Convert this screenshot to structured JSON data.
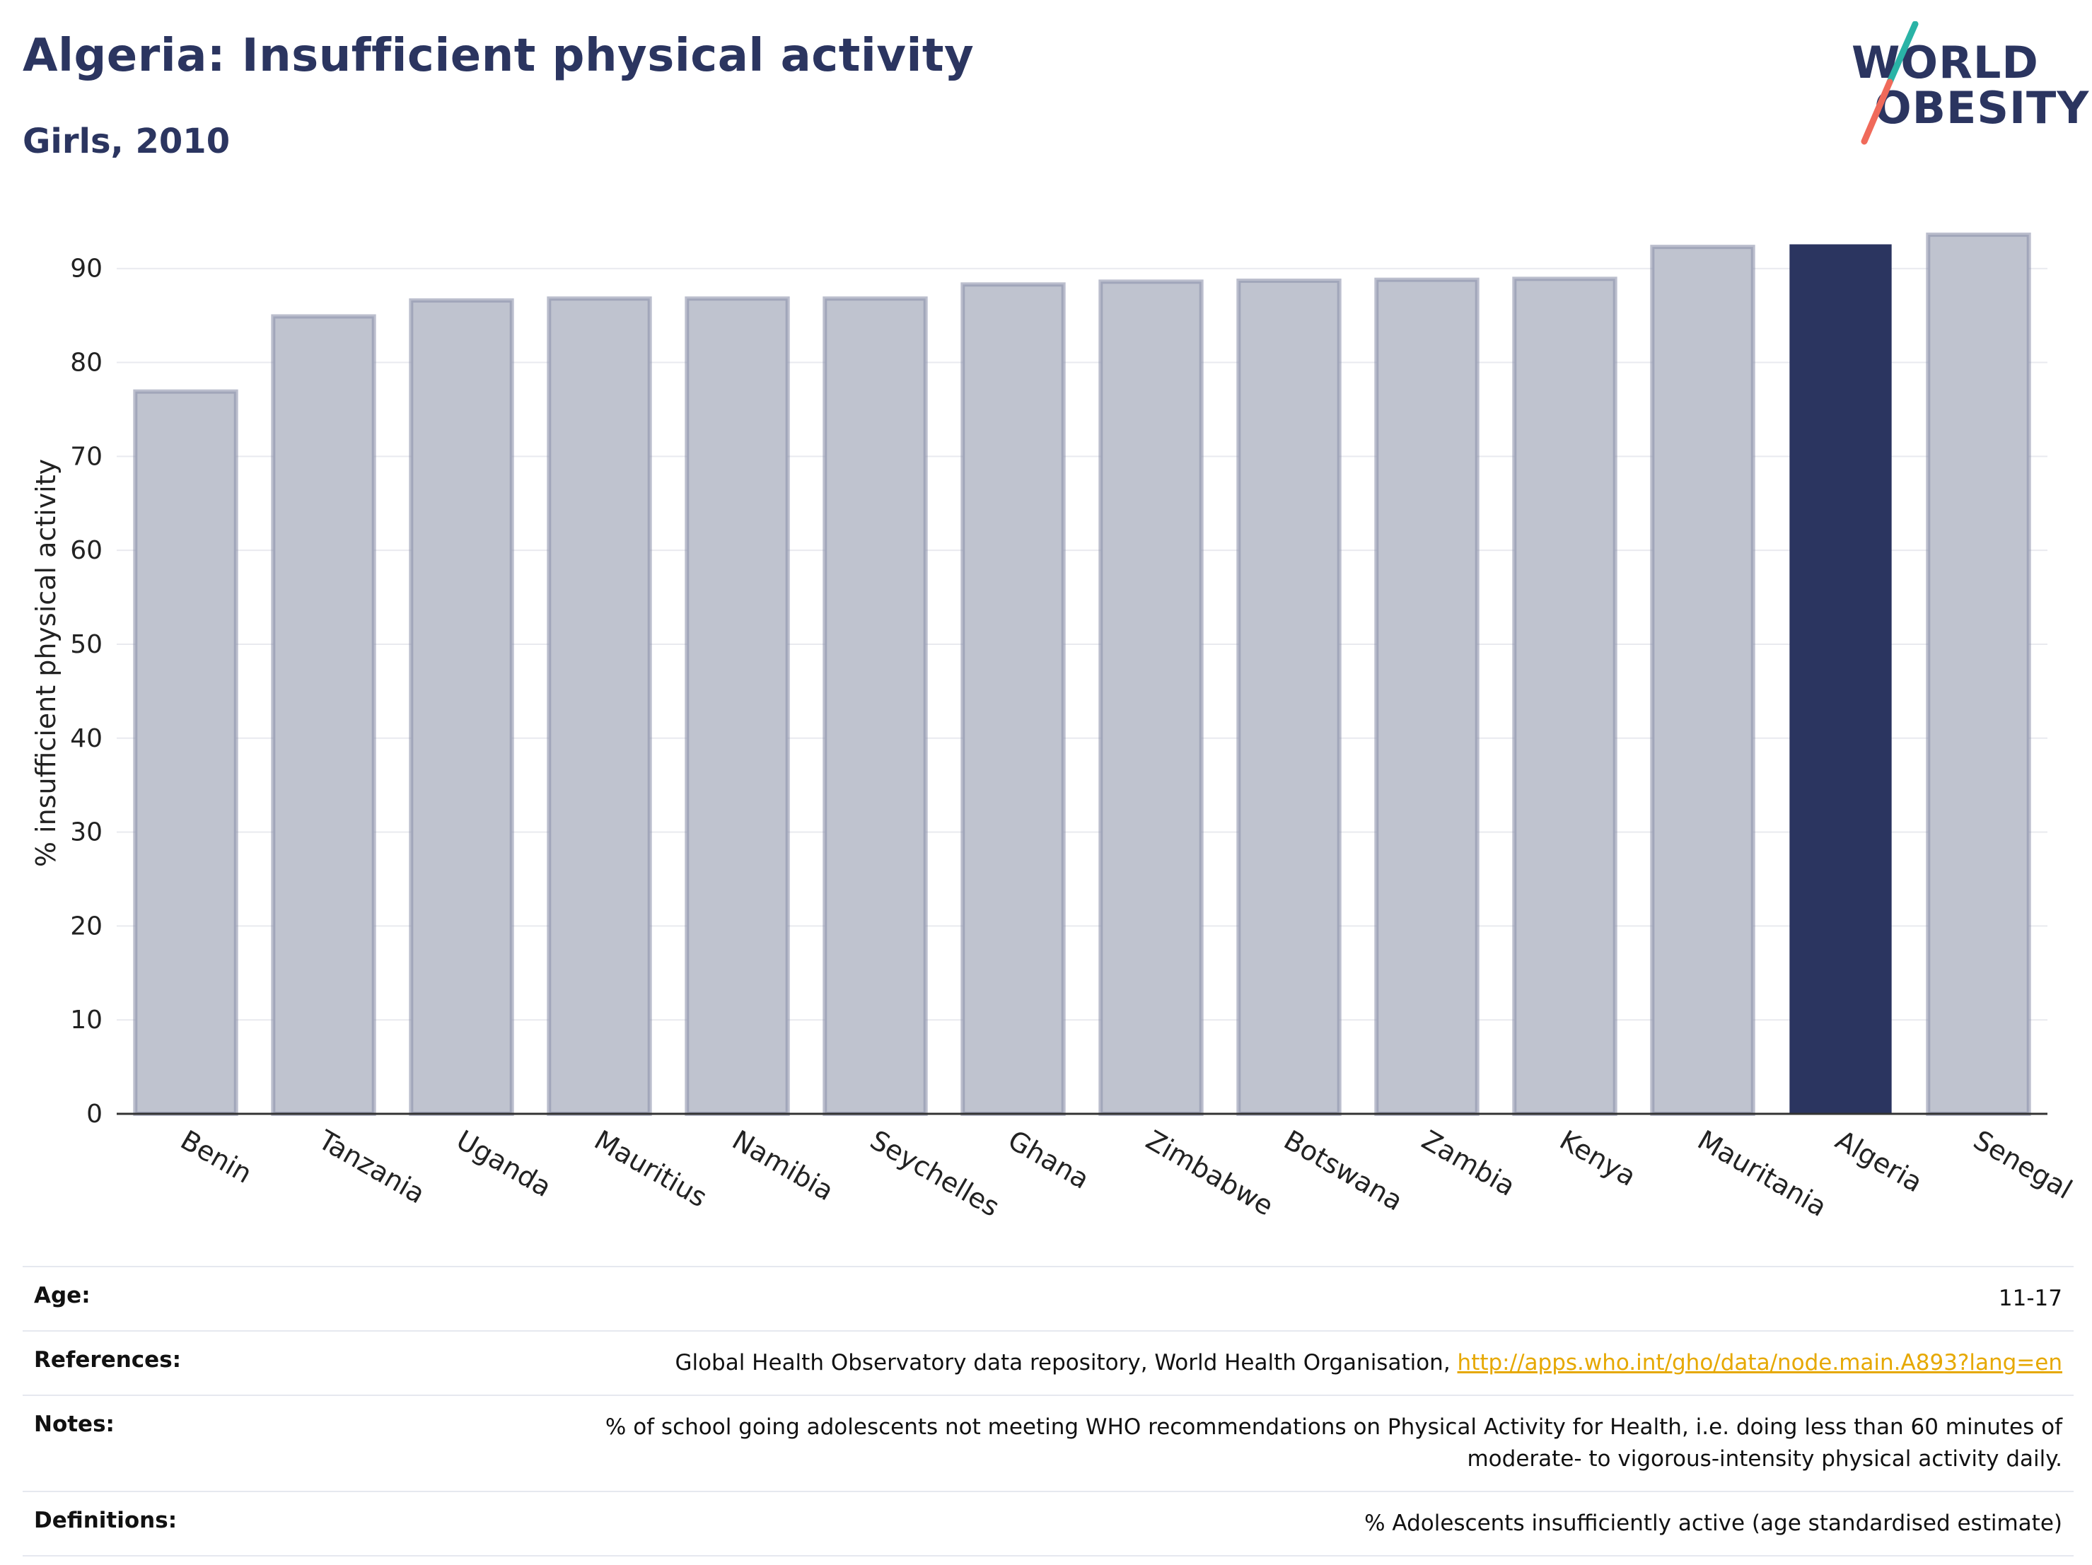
{
  "header": {
    "title": "Algeria: Insufficient physical activity",
    "subtitle": "Girls, 2010"
  },
  "logo": {
    "line1": "WORLD",
    "line2": "OBESITY"
  },
  "colors": {
    "highlight_bar": "#2b3560",
    "other_bar_fill": "#bfc3cf",
    "other_bar_stroke": "#8d93ab",
    "logo_teal": "#2ab3a6",
    "logo_coral": "#f06a5a",
    "link": "#e6a800"
  },
  "chart_data": {
    "type": "bar",
    "title": "Algeria: Insufficient physical activity",
    "subtitle": "Girls, 2010",
    "xlabel": "",
    "ylabel": "% insufficient physical activity",
    "ylim": [
      0,
      96
    ],
    "yticks": [
      0,
      10,
      20,
      30,
      40,
      50,
      60,
      70,
      80,
      90
    ],
    "grid": true,
    "highlight": "Algeria",
    "categories": [
      "Benin",
      "Tanzania",
      "Uganda",
      "Mauritius",
      "Namibia",
      "Seychelles",
      "Ghana",
      "Zimbabwe",
      "Botswana",
      "Zambia",
      "Kenya",
      "Mauritania",
      "Algeria",
      "Senegal"
    ],
    "values": [
      76.9,
      84.9,
      86.6,
      86.8,
      86.8,
      86.8,
      88.3,
      88.6,
      88.7,
      88.8,
      88.9,
      92.3,
      92.5,
      93.6
    ]
  },
  "info": {
    "age": {
      "label": "Age:",
      "value": "11-17"
    },
    "references": {
      "label": "References:",
      "value": "Global Health Observatory data repository, World Health Organisation, ",
      "link": "http://apps.who.int/gho/data/node.main.A893?lang=en"
    },
    "notes": {
      "label": "Notes:",
      "line1": "% of school going adolescents not meeting WHO recommendations on Physical Activity for Health, i.e. doing less than 60 minutes of",
      "line2": "moderate- to vigorous-intensity physical activity daily."
    },
    "definitions": {
      "label": "Definitions:",
      "value": "% Adolescents insufficiently active (age standardised estimate)"
    }
  }
}
